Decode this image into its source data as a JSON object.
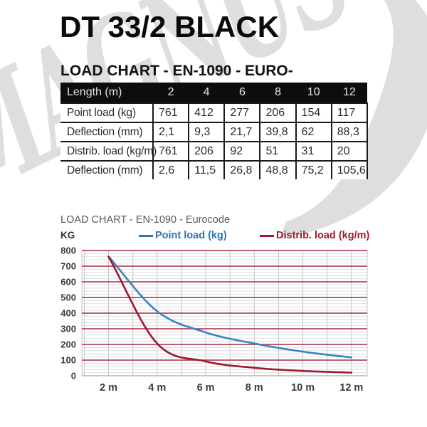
{
  "page": {
    "title": "DT 33/2 BLACK",
    "subtitle": "LOAD CHART - EN-1090 - EURO-"
  },
  "watermark": {
    "text": "MAGNUS",
    "swoosh": ")",
    "color": "#dedede"
  },
  "table": {
    "header": [
      "Length (m)",
      "2",
      "4",
      "6",
      "8",
      "10",
      "12"
    ],
    "rows": [
      {
        "label": "Point load (kg)",
        "values": [
          "761",
          "412",
          "277",
          "206",
          "154",
          "117"
        ]
      },
      {
        "label": "Deflection (mm)",
        "values": [
          "2,1",
          "9,3",
          "21,7",
          "39,8",
          "62",
          "88,3"
        ]
      },
      {
        "label": "Distrib. load (kg/m)",
        "values": [
          "761",
          "206",
          "92",
          "51",
          "31",
          "20"
        ]
      },
      {
        "label": "Deflection (mm)",
        "values": [
          "2,6",
          "11,5",
          "26,8",
          "48,8",
          "75,2",
          "105,6"
        ]
      }
    ]
  },
  "chart": {
    "title": "LOAD CHART - EN-1090 - Eurocode",
    "y_axis_unit": "KG"
  },
  "chart_data": {
    "type": "line",
    "title": "LOAD CHART - EN-1090 - Eurocode",
    "xlabel": "",
    "ylabel": "KG",
    "x": [
      2,
      4,
      6,
      8,
      10,
      12
    ],
    "x_tick_labels": [
      "2 m",
      "4 m",
      "6 m",
      "8 m",
      "10 m",
      "12 m"
    ],
    "series": [
      {
        "name": "Point load (kg)",
        "values": [
          761,
          412,
          277,
          206,
          154,
          117
        ],
        "color": "#3b82c4",
        "label_color": "#2e75b6"
      },
      {
        "name": "Distrib. load (kg/m)",
        "values": [
          761,
          206,
          92,
          51,
          31,
          20
        ],
        "color": "#9c182f",
        "label_color": "#9e1b32"
      }
    ],
    "xlim": [
      0.9,
      12.65
    ],
    "ylim": [
      0,
      800
    ],
    "y_ticks": [
      0,
      100,
      200,
      300,
      400,
      500,
      600,
      700,
      800
    ],
    "grid": {
      "major_color": "#b5485c",
      "minor_color": "#dddddd",
      "vertical_color": "#c7c7c7",
      "axis_color": "#a8a8a8",
      "minor_step": 20,
      "x_step": 1
    },
    "legend_position": "top"
  }
}
